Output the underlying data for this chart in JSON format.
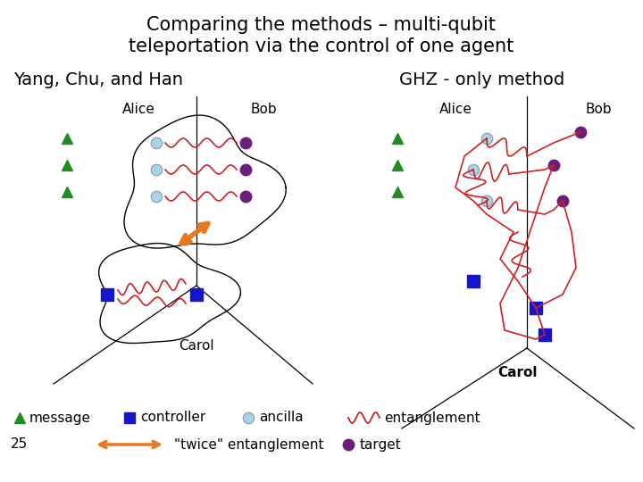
{
  "title_line1": "Comparing the methods – multi-qubit",
  "title_line2": "teleportation via the control of one agent",
  "left_subtitle": "Yang, Chu, and Han",
  "right_subtitle": "GHZ - only method",
  "bg_color": "#ffffff",
  "title_fontsize": 15,
  "subtitle_fontsize": 14,
  "label_fontsize": 11,
  "legend_fontsize": 11,
  "green_triangle_color": "#228B22",
  "blue_square_color": "#1515cc",
  "ancilla_color": "#a8d4e8",
  "target_color": "#6b1f7a",
  "entangle_color": "#cc2222",
  "orange_color": "#e87820"
}
